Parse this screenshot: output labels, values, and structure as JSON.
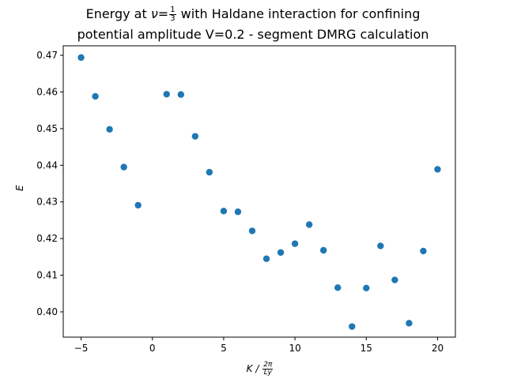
{
  "chart_data": {
    "type": "scatter",
    "title_prefix": "Energy at",
    "title_nu": "ν",
    "title_eq": "=",
    "title_frac_num": "1",
    "title_frac_den": "3",
    "title_suffix": "with Haldane interaction for confining",
    "title_line2": "potential amplitude V=0.2 - segment DMRG calculation",
    "xlabel_main": "K /",
    "xlabel_frac_num": "2π",
    "xlabel_frac_den": "Ly",
    "ylabel": "E",
    "xlim": [
      -6.25,
      21.25
    ],
    "ylim": [
      0.3931,
      0.4726
    ],
    "xticks": [
      -5,
      0,
      5,
      10,
      15,
      20
    ],
    "yticks": [
      0.4,
      0.41,
      0.42,
      0.43,
      0.44,
      0.45,
      0.46,
      0.47
    ],
    "ytick_labels": [
      "0.40",
      "0.41",
      "0.42",
      "0.43",
      "0.44",
      "0.45",
      "0.46",
      "0.47"
    ],
    "marker_color": "#1f77b4",
    "x": [
      -5,
      -4,
      -3,
      -2,
      -1,
      1,
      2,
      3,
      4,
      5,
      6,
      7,
      8,
      9,
      10,
      11,
      12,
      13,
      14,
      15,
      16,
      17,
      18,
      19,
      20
    ],
    "y": [
      0.4694,
      0.4588,
      0.4498,
      0.4395,
      0.4291,
      0.4594,
      0.4593,
      0.4479,
      0.4381,
      0.4275,
      0.4273,
      0.4221,
      0.4145,
      0.4162,
      0.4186,
      0.4238,
      0.4168,
      0.4066,
      0.396,
      0.4065,
      0.418,
      0.4087,
      0.3969,
      0.4166,
      0.4389
    ]
  }
}
